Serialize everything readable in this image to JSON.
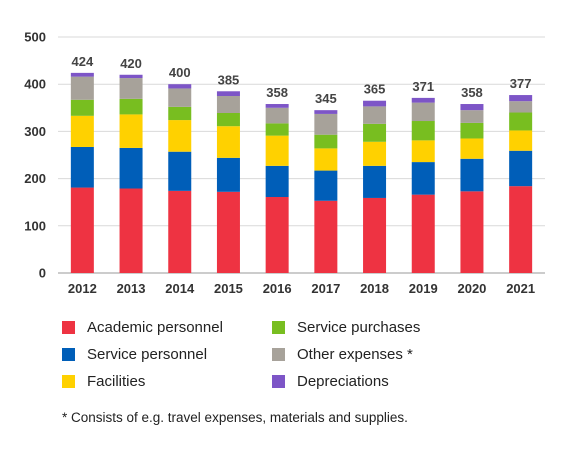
{
  "chart_data": {
    "type": "bar",
    "stacked": true,
    "categories": [
      "2012",
      "2013",
      "2014",
      "2015",
      "2016",
      "2017",
      "2018",
      "2019",
      "2020",
      "2021"
    ],
    "ylim": [
      0,
      500
    ],
    "yticks": [
      0,
      100,
      200,
      300,
      400,
      500
    ],
    "grid": true,
    "legend_position": "bottom",
    "series": [
      {
        "name": "Academic personnel",
        "color": "#ee3342",
        "values": [
          181,
          179,
          174,
          172,
          161,
          153,
          159,
          166,
          173,
          184
        ]
      },
      {
        "name": "Service personnel",
        "color": "#005eb8",
        "values": [
          86,
          86,
          83,
          72,
          66,
          64,
          68,
          69,
          69,
          75
        ]
      },
      {
        "name": "Facilities",
        "color": "#ffd100",
        "values": [
          66,
          71,
          67,
          67,
          64,
          47,
          51,
          46,
          43,
          43
        ]
      },
      {
        "name": "Service purchases",
        "color": "#78be20",
        "values": [
          34,
          33,
          28,
          28,
          26,
          29,
          38,
          41,
          33,
          38
        ]
      },
      {
        "name": "Other expenses *",
        "color": "#a7a29a",
        "values": [
          49,
          44,
          39,
          36,
          33,
          44,
          37,
          39,
          27,
          24
        ]
      },
      {
        "name": "Depreciations",
        "color": "#7d55c7",
        "values": [
          8,
          7,
          9,
          10,
          8,
          8,
          12,
          10,
          13,
          13
        ]
      }
    ],
    "totals": [
      424,
      420,
      400,
      385,
      358,
      345,
      365,
      371,
      358,
      377
    ]
  },
  "legend_order": [
    0,
    3,
    1,
    4,
    2,
    5
  ],
  "footnote": "* Consists of e.g. travel expenses, materials and supplies."
}
